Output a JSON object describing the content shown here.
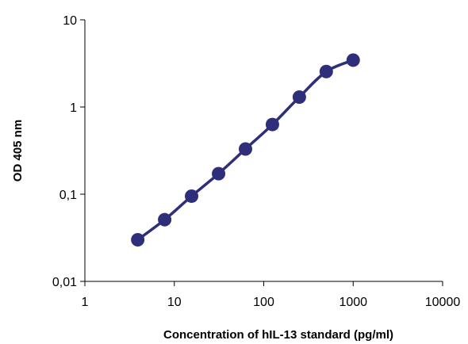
{
  "chart_data": {
    "type": "scatter",
    "xlabel": "Concentration of hIL-13 standard  (pg/ml)",
    "ylabel": "OD 405 nm",
    "xscale": "log",
    "yscale": "log",
    "xlim": [
      1,
      10000
    ],
    "ylim": [
      0.01,
      10
    ],
    "x_ticks": [
      "1",
      "10",
      "100",
      "1000",
      "10000"
    ],
    "y_ticks": [
      "0,01",
      "0,1",
      "1",
      "10"
    ],
    "grid": false,
    "legend": "none",
    "series": [
      {
        "x": [
          3.9,
          7.8,
          15.6,
          31.25,
          62.5,
          125,
          250,
          500,
          1000
        ],
        "y": [
          0.03,
          0.051,
          0.095,
          0.172,
          0.33,
          0.63,
          1.3,
          2.55,
          3.45
        ],
        "color": "#2e2e7a",
        "line": "smooth",
        "marker": "circle"
      }
    ]
  }
}
